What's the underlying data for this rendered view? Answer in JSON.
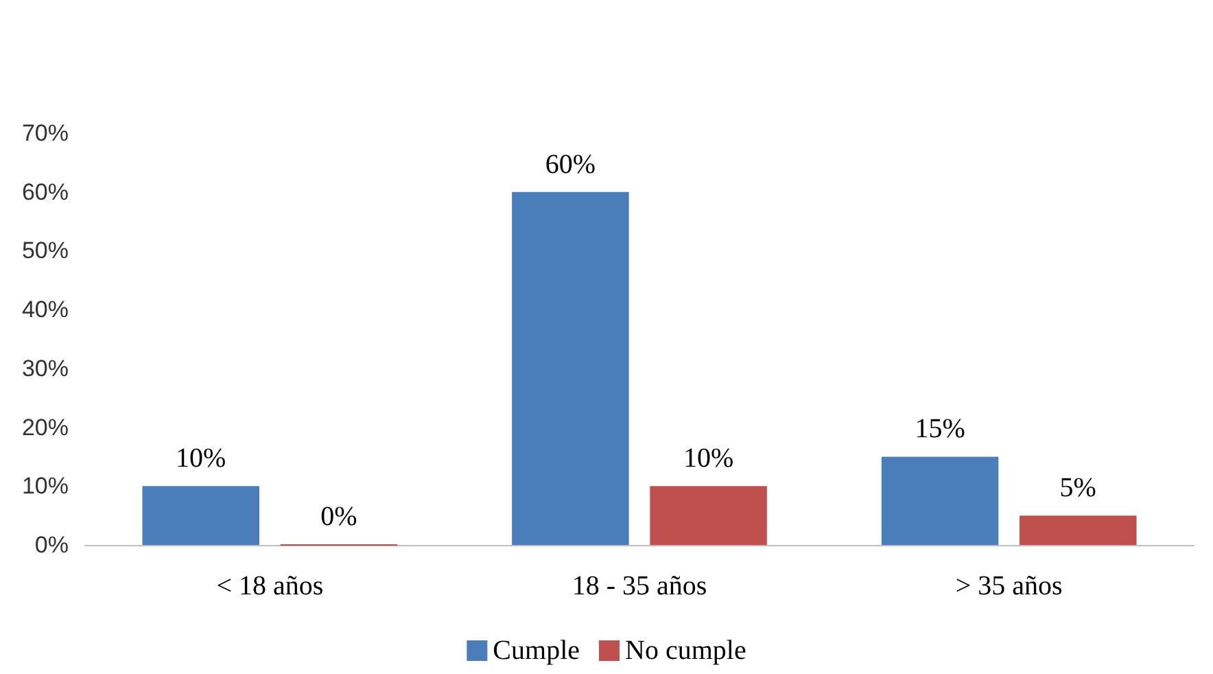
{
  "chart_data": {
    "type": "bar",
    "categories": [
      "< 18 años",
      "18 - 35 años",
      "> 35 años"
    ],
    "series": [
      {
        "name": "Cumple",
        "color": "#4a7ebb",
        "values": [
          10,
          60,
          15
        ],
        "value_labels": [
          "10%",
          "60%",
          "15%"
        ]
      },
      {
        "name": "No cumple",
        "color": "#c0504d",
        "values": [
          0,
          10,
          5
        ],
        "value_labels": [
          "0%",
          "10%",
          "5%"
        ]
      }
    ],
    "ylim": [
      0,
      70
    ],
    "yticks": [
      {
        "value": 0,
        "label": "0%"
      },
      {
        "value": 10,
        "label": "10%"
      },
      {
        "value": 20,
        "label": "20%"
      },
      {
        "value": 30,
        "label": "30%"
      },
      {
        "value": 40,
        "label": "40%"
      },
      {
        "value": 50,
        "label": "50%"
      },
      {
        "value": 60,
        "label": "60%"
      },
      {
        "value": 70,
        "label": "70%"
      }
    ],
    "grid": false,
    "legend": "bottom"
  }
}
